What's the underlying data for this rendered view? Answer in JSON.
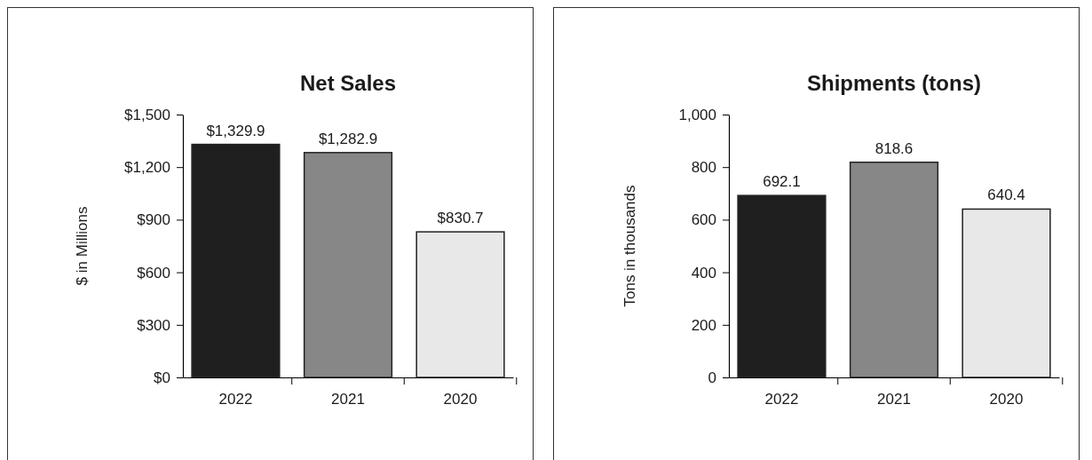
{
  "chart_data": [
    {
      "type": "bar",
      "title": "Net Sales",
      "ylabel": "$ in Millions",
      "categories": [
        "2022",
        "2021",
        "2020"
      ],
      "values": [
        1329.9,
        1282.9,
        830.7
      ],
      "colors": [
        "#1f1f1f",
        "#878787",
        "#e8e8e8"
      ],
      "ylim": [
        0,
        1500
      ],
      "yticks": [
        {
          "value": 0,
          "label": "$0"
        },
        {
          "value": 300,
          "label": "$300"
        },
        {
          "value": 600,
          "label": "$600"
        },
        {
          "value": 900,
          "label": "$900"
        },
        {
          "value": 1200,
          "label": "$1,200"
        },
        {
          "value": 1500,
          "label": "$1,500"
        }
      ],
      "value_labels": [
        "$1,329.9",
        "$1,282.9",
        "$830.7"
      ]
    },
    {
      "type": "bar",
      "title": "Shipments (tons)",
      "ylabel": "Tons in thousands",
      "categories": [
        "2022",
        "2021",
        "2020"
      ],
      "values": [
        692.1,
        818.6,
        640.4
      ],
      "colors": [
        "#1f1f1f",
        "#878787",
        "#e8e8e8"
      ],
      "ylim": [
        0,
        1000
      ],
      "yticks": [
        0,
        200,
        400,
        600,
        800,
        {
          "value": 1000,
          "label": "1,000"
        }
      ],
      "data_labels": true
    }
  ]
}
